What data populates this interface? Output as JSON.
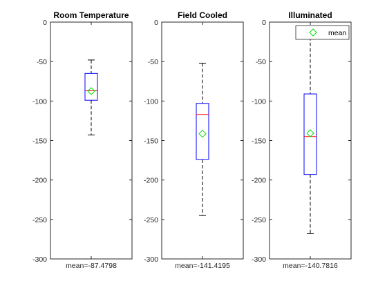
{
  "chart_data": [
    {
      "type": "boxplot",
      "title": "Room Temperature",
      "xtick_label": "mean=-87.4798",
      "ylim": [
        -300,
        0
      ],
      "yticks": [
        0,
        -50,
        -100,
        -150,
        -200,
        -250,
        -300
      ],
      "whisker_high": -48,
      "q3": -65,
      "median": -87,
      "q1": -99,
      "whisker_low": -143,
      "mean": -87.4798,
      "legend": null
    },
    {
      "type": "boxplot",
      "title": "Field Cooled",
      "xtick_label": "mean=-141.4195",
      "ylim": [
        -300,
        0
      ],
      "yticks": [
        0,
        -50,
        -100,
        -150,
        -200,
        -250,
        -300
      ],
      "whisker_high": -52,
      "q3": -103,
      "median": -117,
      "q1": -174,
      "whisker_low": -245,
      "mean": -141.4195,
      "legend": null
    },
    {
      "type": "boxplot",
      "title": "Illuminated",
      "xtick_label": "mean=-140.7816",
      "ylim": [
        -300,
        0
      ],
      "yticks": [
        0,
        -50,
        -100,
        -150,
        -200,
        -250,
        -300
      ],
      "whisker_high": -5,
      "q3": -91,
      "median": -145,
      "q1": -193,
      "whisker_low": -268,
      "mean": -140.7816,
      "legend": "mean"
    }
  ],
  "colors": {
    "box": "#0000ff",
    "median": "#ff0000",
    "mean": "#00e000",
    "whisker": "#000000",
    "axes": "#262626"
  }
}
